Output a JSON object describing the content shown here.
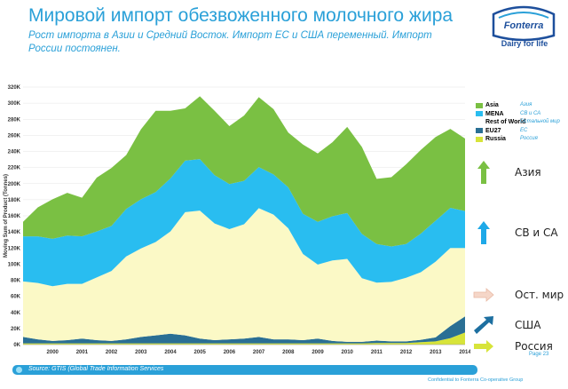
{
  "header": {
    "title": "Мировой импорт обезвоженного молочного жира",
    "subtitle": "Рост импорта в Азии и Средний Восток. Импорт ЕС и США переменный. Импорт России постоянен."
  },
  "logo": {
    "brand": "Fonterra",
    "tagline": "Dairy for life",
    "color": "#1d4f9c"
  },
  "legend": {
    "items": [
      {
        "label": "Asia",
        "ru": "Азия",
        "color": "#7ac043"
      },
      {
        "label": "MENA",
        "ru": "СВ и СА",
        "color": "#29bdf0"
      },
      {
        "label": "Rest of World",
        "ru": "Остальной мир",
        "color": "#fbf9c6"
      },
      {
        "label": "EU27",
        "ru": "ЕС",
        "color": "#2a6f94"
      },
      {
        "label": "Russia",
        "ru": "Россия",
        "color": "#d7e43a"
      }
    ]
  },
  "trends": [
    {
      "label": "Азия",
      "icon": "arrow-up-icon",
      "color": "#7ac043"
    },
    {
      "label": "СВ и СА",
      "icon": "arrow-up-icon",
      "color": "#1ea9e8"
    },
    {
      "label": "Ост. мир",
      "icon": "arrow-right-icon",
      "color": "#f5d6c8"
    },
    {
      "label": "США",
      "icon": "arrow-up-right-icon",
      "color": "#1d6fa0"
    },
    {
      "label": "Россия",
      "icon": "arrow-right-icon",
      "color": "#d7e43a"
    }
  ],
  "footer": {
    "source": "Source: GTIS (Global Trade Information Services",
    "page": "Page 23",
    "confidential": "Confidential to Fonterra Co-operative Group"
  },
  "chart_data": {
    "type": "area",
    "stacked": true,
    "ylabel": "Moving Sum of Product (Tonnes)",
    "ylim": [
      0,
      320000
    ],
    "y_ticks": [
      "0K",
      "20K",
      "40K",
      "60K",
      "80K",
      "100K",
      "120K",
      "140K",
      "160K",
      "180K",
      "200K",
      "220K",
      "240K",
      "260K",
      "280K",
      "300K",
      "320K"
    ],
    "x_ticks": [
      "2000",
      "2001",
      "2002",
      "2003",
      "2004",
      "2005",
      "2006",
      "2007",
      "2008",
      "2009",
      "2010",
      "2011",
      "2012",
      "2013",
      "2014"
    ],
    "x": [
      "1999",
      "1999.5",
      "2000",
      "2000.5",
      "2001",
      "2001.5",
      "2002",
      "2002.5",
      "2003",
      "2003.5",
      "2004",
      "2004.5",
      "2005",
      "2005.5",
      "2006",
      "2006.5",
      "2007",
      "2007.5",
      "2008",
      "2008.5",
      "2009",
      "2009.5",
      "2010",
      "2010.5",
      "2011",
      "2011.5",
      "2012",
      "2012.5",
      "2013",
      "2013.5",
      "2014"
    ],
    "grid": true,
    "series": [
      {
        "name": "Russia",
        "color": "#d7e43a",
        "values": [
          1500,
          1500,
          1500,
          1500,
          1500,
          1500,
          1500,
          1500,
          1500,
          1500,
          1500,
          1500,
          1500,
          1500,
          1500,
          1500,
          1500,
          1500,
          1500,
          1500,
          1500,
          1500,
          1500,
          1500,
          2000,
          2000,
          2000,
          3000,
          4000,
          8000,
          15000
        ]
      },
      {
        "name": "EU27",
        "color": "#2a6f94",
        "values": [
          8000,
          5000,
          3000,
          4000,
          6000,
          4000,
          3000,
          5000,
          8000,
          10000,
          12000,
          10000,
          6000,
          4000,
          5000,
          6000,
          8000,
          5000,
          5000,
          4000,
          6000,
          3000,
          2000,
          2000,
          3000,
          2000,
          2000,
          3000,
          5000,
          15000,
          20000
        ]
      },
      {
        "name": "Rest of World",
        "color": "#fbf9c6",
        "values": [
          69000,
          70000,
          68000,
          70000,
          68000,
          78000,
          87000,
          103000,
          110000,
          116000,
          127000,
          153000,
          159000,
          145000,
          137000,
          142000,
          160000,
          155000,
          138000,
          107000,
          92000,
          100000,
          103000,
          79000,
          72000,
          74000,
          79000,
          84000,
          94000,
          97000,
          85000
        ]
      },
      {
        "name": "MENA",
        "color": "#29bdf0",
        "values": [
          56000,
          58000,
          59000,
          60000,
          59000,
          57000,
          56000,
          59000,
          61000,
          62000,
          66000,
          64000,
          64000,
          60000,
          56000,
          54000,
          51000,
          50000,
          51000,
          50000,
          53000,
          55000,
          57000,
          55000,
          48000,
          44000,
          42000,
          48000,
          51000,
          50000,
          46000
        ]
      },
      {
        "name": "Asia",
        "color": "#7ac043",
        "values": [
          18000,
          36000,
          49000,
          53000,
          48000,
          67000,
          72000,
          67000,
          87000,
          101000,
          84000,
          65000,
          78000,
          80000,
          72000,
          81000,
          87000,
          81000,
          68000,
          86000,
          85000,
          92000,
          107000,
          108000,
          81000,
          86000,
          99000,
          104000,
          104000,
          98000,
          90000
        ]
      }
    ]
  }
}
